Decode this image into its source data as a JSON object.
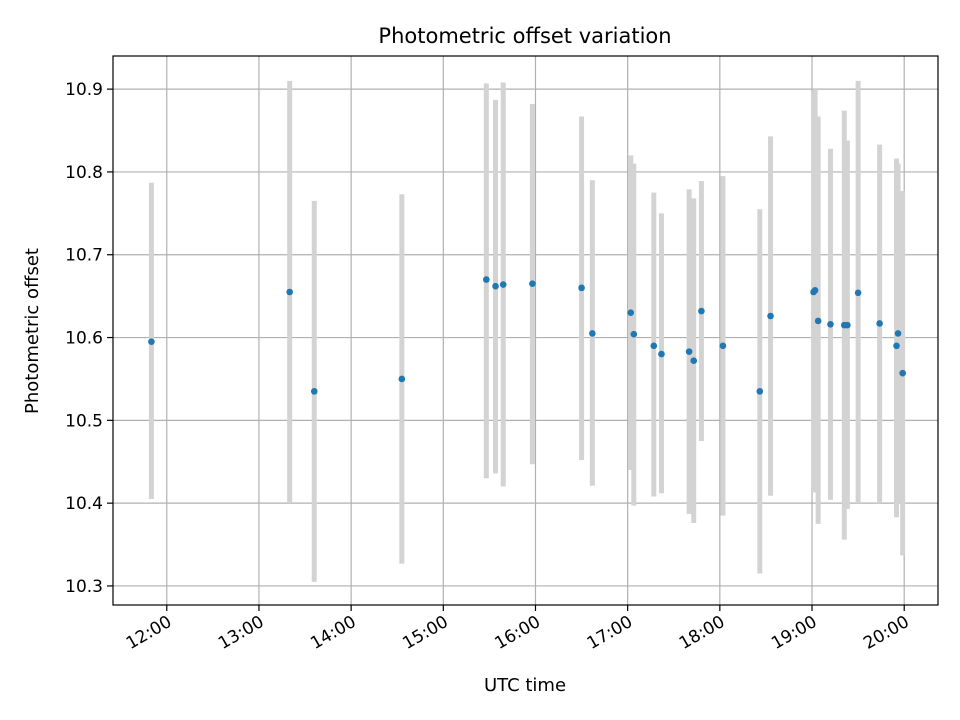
{
  "chart_data": {
    "type": "scatter",
    "title": "Photometric offset variation",
    "xlabel": "UTC time",
    "ylabel": "Photometric offset",
    "grid": true,
    "xlim": [
      "11:25",
      "20:22"
    ],
    "ylim": [
      10.277,
      10.94
    ],
    "xticks": [
      "12:00",
      "13:00",
      "14:00",
      "15:00",
      "16:00",
      "17:00",
      "18:00",
      "19:00",
      "20:00"
    ],
    "yticks": [
      10.3,
      10.4,
      10.5,
      10.6,
      10.7,
      10.8,
      10.9
    ],
    "ytick_labels": [
      "10.3",
      "10.4",
      "10.5",
      "10.6",
      "10.7",
      "10.8",
      "10.9"
    ],
    "colors": {
      "point": "#1f77b4",
      "errorbar": "#d3d3d3",
      "grid": "#b0b0b0"
    },
    "points": [
      {
        "x": "11:50",
        "y": 10.595,
        "lo": 10.405,
        "hi": 10.787
      },
      {
        "x": "13:20",
        "y": 10.655,
        "lo": 10.4,
        "hi": 10.91
      },
      {
        "x": "13:36",
        "y": 10.535,
        "lo": 10.305,
        "hi": 10.765
      },
      {
        "x": "14:33",
        "y": 10.55,
        "lo": 10.327,
        "hi": 10.773
      },
      {
        "x": "15:28",
        "y": 10.67,
        "lo": 10.43,
        "hi": 10.907
      },
      {
        "x": "15:34",
        "y": 10.662,
        "lo": 10.436,
        "hi": 10.887
      },
      {
        "x": "15:39",
        "y": 10.664,
        "lo": 10.42,
        "hi": 10.908
      },
      {
        "x": "15:58",
        "y": 10.665,
        "lo": 10.447,
        "hi": 10.882
      },
      {
        "x": "16:30",
        "y": 10.66,
        "lo": 10.452,
        "hi": 10.867
      },
      {
        "x": "16:37",
        "y": 10.605,
        "lo": 10.421,
        "hi": 10.79
      },
      {
        "x": "17:02",
        "y": 10.63,
        "lo": 10.44,
        "hi": 10.82
      },
      {
        "x": "17:04",
        "y": 10.604,
        "lo": 10.397,
        "hi": 10.81
      },
      {
        "x": "17:17",
        "y": 10.59,
        "lo": 10.408,
        "hi": 10.775
      },
      {
        "x": "17:22",
        "y": 10.58,
        "lo": 10.412,
        "hi": 10.75
      },
      {
        "x": "17:40",
        "y": 10.583,
        "lo": 10.387,
        "hi": 10.779
      },
      {
        "x": "17:43",
        "y": 10.572,
        "lo": 10.376,
        "hi": 10.768
      },
      {
        "x": "17:48",
        "y": 10.632,
        "lo": 10.475,
        "hi": 10.789
      },
      {
        "x": "18:02",
        "y": 10.59,
        "lo": 10.385,
        "hi": 10.795
      },
      {
        "x": "18:26",
        "y": 10.535,
        "lo": 10.315,
        "hi": 10.755
      },
      {
        "x": "18:33",
        "y": 10.626,
        "lo": 10.409,
        "hi": 10.843
      },
      {
        "x": "19:01",
        "y": 10.655,
        "lo": 10.413,
        "hi": 10.897
      },
      {
        "x": "19:02",
        "y": 10.657,
        "lo": 10.414,
        "hi": 10.9
      },
      {
        "x": "19:04",
        "y": 10.62,
        "lo": 10.375,
        "hi": 10.867
      },
      {
        "x": "19:12",
        "y": 10.616,
        "lo": 10.404,
        "hi": 10.828
      },
      {
        "x": "19:21",
        "y": 10.615,
        "lo": 10.356,
        "hi": 10.874
      },
      {
        "x": "19:23",
        "y": 10.615,
        "lo": 10.393,
        "hi": 10.838
      },
      {
        "x": "19:30",
        "y": 10.654,
        "lo": 10.4,
        "hi": 10.91
      },
      {
        "x": "19:44",
        "y": 10.617,
        "lo": 10.4,
        "hi": 10.833
      },
      {
        "x": "19:55",
        "y": 10.59,
        "lo": 10.383,
        "hi": 10.816
      },
      {
        "x": "19:56",
        "y": 10.605,
        "lo": 10.4,
        "hi": 10.81
      },
      {
        "x": "19:59",
        "y": 10.557,
        "lo": 10.337,
        "hi": 10.777
      }
    ]
  }
}
